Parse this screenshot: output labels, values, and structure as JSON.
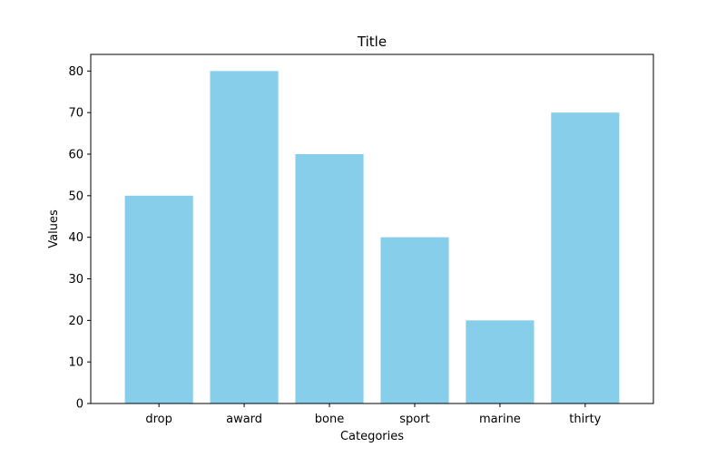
{
  "chart_data": {
    "type": "bar",
    "title": "Title",
    "xlabel": "Categories",
    "ylabel": "Values",
    "categories": [
      "drop",
      "award",
      "bone",
      "sport",
      "marine",
      "thirty"
    ],
    "values": [
      50,
      80,
      60,
      40,
      20,
      70
    ],
    "ylim": [
      0,
      84
    ],
    "yticks": [
      0,
      10,
      20,
      30,
      40,
      50,
      60,
      70,
      80
    ],
    "bar_color": "#87ceeb",
    "grid": false,
    "legend": "none"
  }
}
